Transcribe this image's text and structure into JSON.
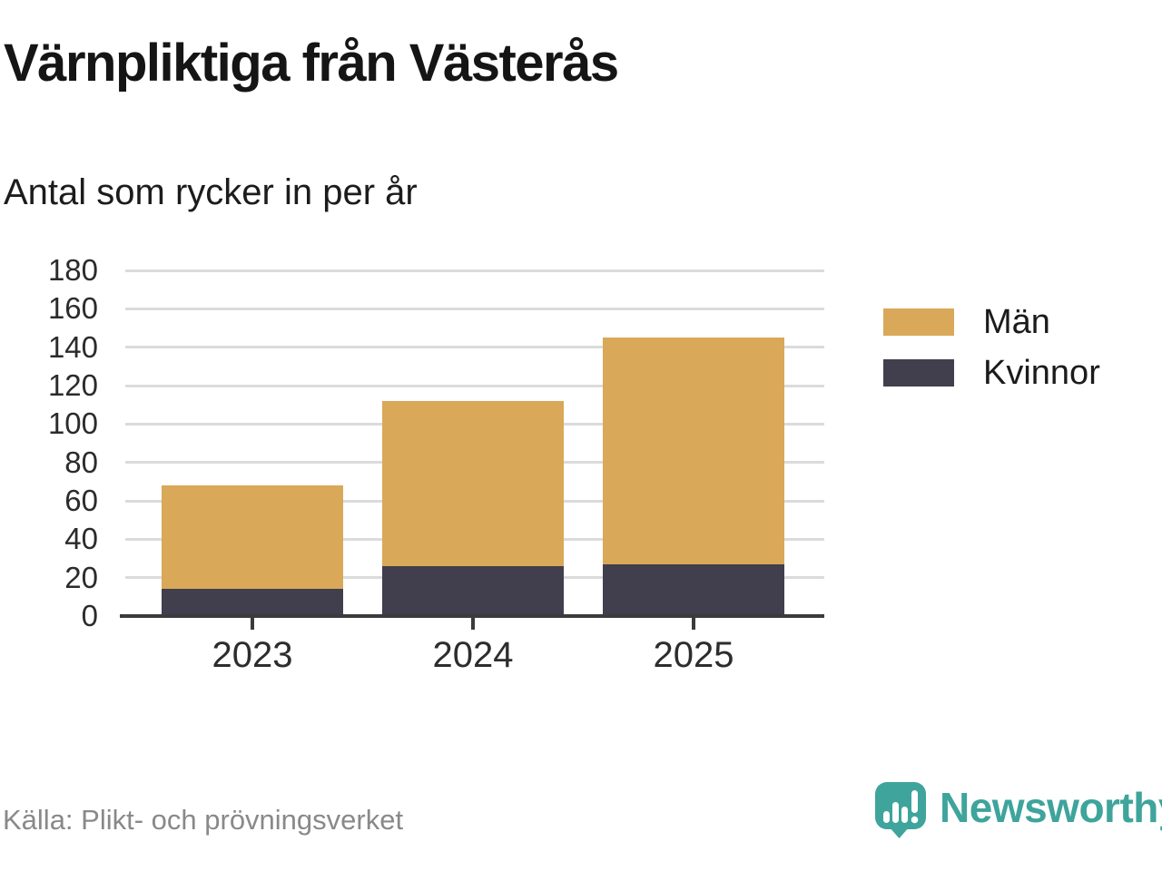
{
  "header": {
    "title": "Värnpliktiga från Västerås",
    "subtitle": "Antal som rycker in per år"
  },
  "chart_data": {
    "type": "bar",
    "stacked": true,
    "categories": [
      "2023",
      "2024",
      "2025"
    ],
    "series": [
      {
        "name": "Män",
        "color": "#d9a858",
        "values": [
          54,
          86,
          118
        ]
      },
      {
        "name": "Kvinnor",
        "color": "#413e4d",
        "values": [
          14,
          26,
          27
        ]
      }
    ],
    "stack_order": [
      "Kvinnor",
      "Män"
    ],
    "totals": [
      68,
      112,
      145
    ],
    "title": "Värnpliktiga från Västerås",
    "subtitle": "Antal som rycker in per år",
    "xlabel": "",
    "ylabel": "",
    "ylim": [
      0,
      180
    ],
    "yticks": [
      0,
      20,
      40,
      60,
      80,
      100,
      120,
      140,
      160,
      180
    ],
    "grid": true,
    "legend_position": "right"
  },
  "colors": {
    "men": "#d9a858",
    "women": "#413e4d",
    "axis": "#3b3b3d",
    "gridline": "#dbdbdb",
    "brand_teal": "#3ea49c",
    "source_gray": "#898989"
  },
  "footer": {
    "source": "Källa: Plikt- och prövningsverket",
    "brand": "Newsworthy"
  }
}
